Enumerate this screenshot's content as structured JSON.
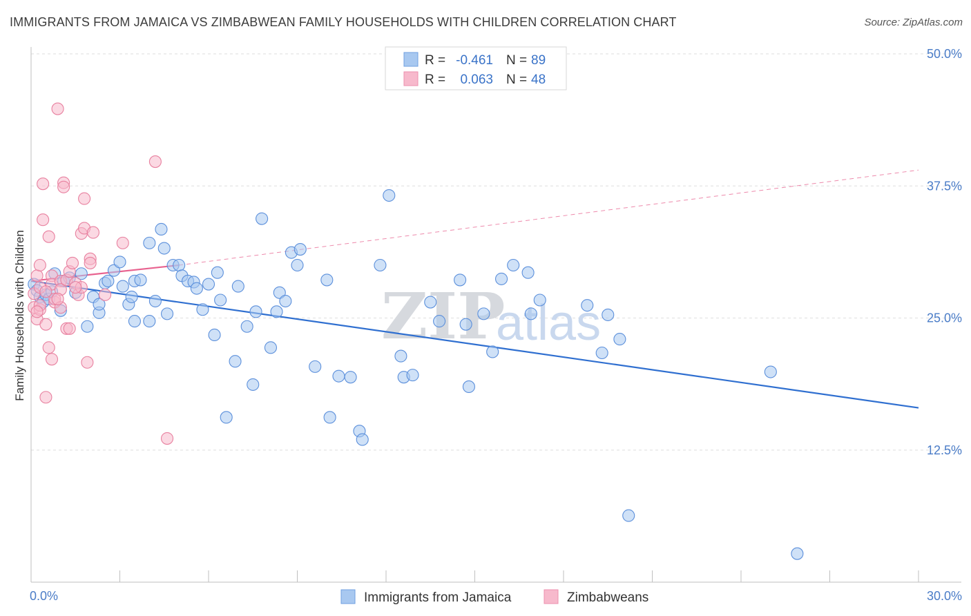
{
  "title": "IMMIGRANTS FROM JAMAICA VS ZIMBABWEAN FAMILY HOUSEHOLDS WITH CHILDREN CORRELATION CHART",
  "source": "Source: ZipAtlas.com",
  "watermark": {
    "zip": "ZIP",
    "atlas": "atlas"
  },
  "legend_top": [
    {
      "r_label": "R =",
      "r_value": "-0.461",
      "n_label": "N =",
      "n_value": "89",
      "color": "#a8c8f0",
      "stroke": "#6f9fe0"
    },
    {
      "r_label": "R =",
      "r_value": "0.063",
      "n_label": "N =",
      "n_value": "48",
      "color": "#f7b9cc",
      "stroke": "#ec8fae"
    }
  ],
  "chart_data": {
    "type": "scatter",
    "title": "IMMIGRANTS FROM JAMAICA VS ZIMBABWEAN FAMILY HOUSEHOLDS WITH CHILDREN CORRELATION CHART",
    "xlabel": "",
    "ylabel": "Family Households with Children",
    "xlim": [
      0,
      30
    ],
    "ylim": [
      0,
      50
    ],
    "x_tick_labels": [
      "0.0%",
      "30.0%"
    ],
    "y_ticks": [
      12.5,
      25.0,
      37.5,
      50.0
    ],
    "y_tick_labels": [
      "12.5%",
      "25.0%",
      "37.5%",
      "50.0%"
    ],
    "grid": true,
    "legend_position": "top-center",
    "series": [
      {
        "name": "Immigrants from Jamaica",
        "color": "#a8c8f0",
        "stroke": "#5b8fdb",
        "trend": {
          "x": [
            0,
            30
          ],
          "y": [
            28.5,
            16.5
          ],
          "color": "#2f6fd0",
          "style": "solid"
        },
        "points": [
          [
            0.1,
            28.2
          ],
          [
            0.2,
            27.6
          ],
          [
            0.3,
            27.0
          ],
          [
            0.4,
            26.5
          ],
          [
            0.5,
            27.2
          ],
          [
            0.6,
            26.8
          ],
          [
            0.7,
            27.5
          ],
          [
            0.8,
            29.2
          ],
          [
            1.0,
            25.7
          ],
          [
            1.1,
            28.5
          ],
          [
            1.3,
            28.8
          ],
          [
            1.5,
            27.4
          ],
          [
            1.7,
            29.2
          ],
          [
            1.9,
            24.2
          ],
          [
            2.1,
            27.0
          ],
          [
            2.3,
            25.5
          ],
          [
            2.5,
            28.3
          ],
          [
            2.6,
            28.5
          ],
          [
            2.8,
            29.5
          ],
          [
            3.0,
            30.3
          ],
          [
            3.1,
            28.0
          ],
          [
            3.3,
            26.3
          ],
          [
            3.4,
            27.0
          ],
          [
            3.5,
            28.5
          ],
          [
            3.5,
            24.7
          ],
          [
            3.7,
            28.6
          ],
          [
            4.0,
            24.7
          ],
          [
            4.0,
            32.1
          ],
          [
            4.2,
            26.6
          ],
          [
            4.4,
            33.4
          ],
          [
            4.5,
            31.6
          ],
          [
            4.6,
            25.4
          ],
          [
            4.8,
            30.0
          ],
          [
            5.0,
            30.0
          ],
          [
            5.1,
            29.0
          ],
          [
            5.3,
            28.5
          ],
          [
            5.5,
            28.4
          ],
          [
            5.6,
            27.8
          ],
          [
            5.8,
            25.8
          ],
          [
            6.0,
            28.2
          ],
          [
            6.2,
            23.4
          ],
          [
            6.3,
            29.3
          ],
          [
            6.4,
            26.7
          ],
          [
            6.6,
            15.6
          ],
          [
            6.9,
            20.9
          ],
          [
            7.0,
            28.0
          ],
          [
            7.3,
            24.2
          ],
          [
            7.5,
            18.7
          ],
          [
            7.6,
            25.6
          ],
          [
            7.8,
            34.4
          ],
          [
            8.1,
            22.2
          ],
          [
            8.3,
            25.6
          ],
          [
            8.4,
            27.4
          ],
          [
            8.6,
            26.6
          ],
          [
            8.8,
            31.2
          ],
          [
            9.0,
            30.0
          ],
          [
            9.1,
            31.5
          ],
          [
            9.6,
            20.4
          ],
          [
            10.0,
            28.6
          ],
          [
            10.1,
            15.6
          ],
          [
            10.4,
            19.5
          ],
          [
            10.8,
            19.4
          ],
          [
            11.1,
            14.3
          ],
          [
            11.2,
            13.5
          ],
          [
            11.8,
            30.0
          ],
          [
            12.1,
            36.6
          ],
          [
            12.5,
            21.4
          ],
          [
            12.6,
            19.4
          ],
          [
            12.9,
            19.6
          ],
          [
            13.5,
            26.5
          ],
          [
            13.8,
            24.7
          ],
          [
            14.5,
            28.6
          ],
          [
            14.7,
            24.4
          ],
          [
            14.8,
            18.5
          ],
          [
            15.3,
            25.4
          ],
          [
            15.6,
            21.8
          ],
          [
            15.9,
            28.7
          ],
          [
            16.3,
            30.0
          ],
          [
            16.8,
            29.3
          ],
          [
            16.9,
            25.4
          ],
          [
            17.2,
            26.7
          ],
          [
            18.8,
            26.2
          ],
          [
            19.3,
            21.7
          ],
          [
            19.5,
            25.3
          ],
          [
            19.9,
            23.0
          ],
          [
            20.2,
            6.3
          ],
          [
            25.0,
            19.9
          ],
          [
            25.9,
            2.7
          ],
          [
            2.3,
            26.3
          ]
        ]
      },
      {
        "name": "Zimbabweans",
        "color": "#f7b9cc",
        "stroke": "#e8809f",
        "trend": {
          "x": [
            0,
            5
          ],
          "y": [
            28.5,
            30.0
          ],
          "color": "#e8628f",
          "style": "solid",
          "extension": {
            "x": [
              5,
              30
            ],
            "y": [
              30.0,
              39.0
            ],
            "style": "dashed"
          }
        },
        "points": [
          [
            0.1,
            27.3
          ],
          [
            0.1,
            26.0
          ],
          [
            0.2,
            24.9
          ],
          [
            0.2,
            29.0
          ],
          [
            0.3,
            25.8
          ],
          [
            0.3,
            30.0
          ],
          [
            0.3,
            27.9
          ],
          [
            0.4,
            34.3
          ],
          [
            0.4,
            37.7
          ],
          [
            0.5,
            24.4
          ],
          [
            0.5,
            17.5
          ],
          [
            0.6,
            22.2
          ],
          [
            0.6,
            32.7
          ],
          [
            0.7,
            29.0
          ],
          [
            0.7,
            21.1
          ],
          [
            0.7,
            28.2
          ],
          [
            0.8,
            26.5
          ],
          [
            0.8,
            26.8
          ],
          [
            0.9,
            44.8
          ],
          [
            1.0,
            28.5
          ],
          [
            1.0,
            27.7
          ],
          [
            1.0,
            26.0
          ],
          [
            1.1,
            37.8
          ],
          [
            1.1,
            37.4
          ],
          [
            1.2,
            24.0
          ],
          [
            1.2,
            28.6
          ],
          [
            1.3,
            24.0
          ],
          [
            1.3,
            29.4
          ],
          [
            1.4,
            30.2
          ],
          [
            1.5,
            28.3
          ],
          [
            1.6,
            27.2
          ],
          [
            1.7,
            33.0
          ],
          [
            1.7,
            27.9
          ],
          [
            1.8,
            33.5
          ],
          [
            1.8,
            36.3
          ],
          [
            1.9,
            20.8
          ],
          [
            2.0,
            30.6
          ],
          [
            2.0,
            30.2
          ],
          [
            2.1,
            33.1
          ],
          [
            2.5,
            27.2
          ],
          [
            3.1,
            32.1
          ],
          [
            4.2,
            39.8
          ],
          [
            4.6,
            13.6
          ],
          [
            0.3,
            26.2
          ],
          [
            0.5,
            27.5
          ],
          [
            0.9,
            26.8
          ],
          [
            1.5,
            27.9
          ],
          [
            0.2,
            25.6
          ]
        ]
      }
    ]
  },
  "bottom_legend": [
    {
      "label": "Immigrants from Jamaica",
      "color": "#a8c8f0",
      "stroke": "#6f9fe0"
    },
    {
      "label": "Zimbabweans",
      "color": "#f7b9cc",
      "stroke": "#ec8fae"
    }
  ]
}
